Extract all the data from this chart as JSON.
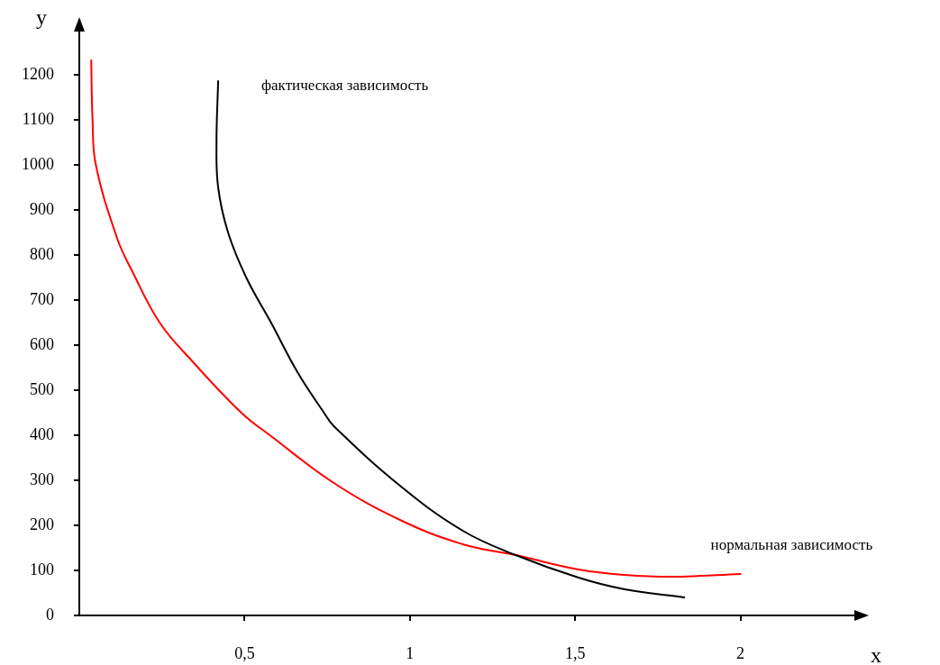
{
  "chart_data": {
    "type": "line",
    "xlabel": "x",
    "ylabel": "y",
    "xlim": [
      0,
      2.35
    ],
    "ylim": [
      0,
      1300
    ],
    "xticks": [
      {
        "value": 0.5,
        "label": "0,5"
      },
      1,
      {
        "value": 1.5,
        "label": "1,5"
      },
      2
    ],
    "yticks": [
      0,
      100,
      200,
      300,
      400,
      500,
      600,
      700,
      800,
      900,
      1000,
      1100,
      1200
    ],
    "grid": false,
    "legend": false,
    "marker": "none",
    "line_style": "solid",
    "series": [
      {
        "name": "фактическая зависимость",
        "color": "#000000",
        "x": [
          0.42,
          0.415,
          0.42,
          0.45,
          0.505,
          0.58,
          0.66,
          0.74,
          0.77,
          0.97,
          1.16,
          1.32,
          1.51,
          1.65,
          1.83
        ],
        "values": [
          1186,
          1050,
          950,
          850,
          750,
          650,
          540,
          450,
          420,
          288,
          188,
          134,
          84,
          58,
          40
        ]
      },
      {
        "name": "нормальная зависимость",
        "color": "#ff0000",
        "x": [
          0.036,
          0.04,
          0.05,
          0.115,
          0.16,
          0.243,
          0.342,
          0.49,
          0.58,
          0.77,
          0.97,
          1.16,
          1.32,
          1.51,
          1.65,
          1.8,
          2.0
        ],
        "values": [
          1232,
          1100,
          1000,
          836,
          764,
          650,
          564,
          450,
          398,
          294,
          212,
          158,
          134,
          102,
          90,
          86,
          92
        ]
      }
    ]
  }
}
